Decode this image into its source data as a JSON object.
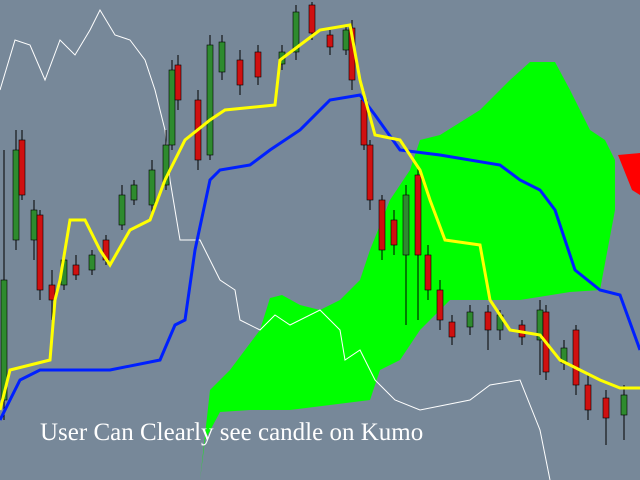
{
  "annotation": "User Can Clearly see candle on Kumo"
}
